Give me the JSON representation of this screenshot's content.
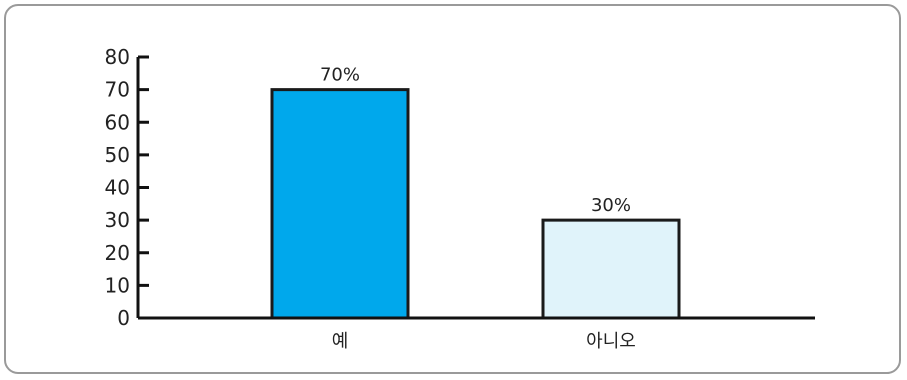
{
  "chart_data": {
    "type": "bar",
    "categories": [
      "예",
      "아니오"
    ],
    "values": [
      70,
      30
    ],
    "data_labels": [
      "70%",
      "30%"
    ],
    "bar_colors": [
      "#00a8ec",
      "#e0f3fa"
    ],
    "bar_stroke": "#1a1a1a",
    "yticks": [
      "0",
      "10",
      "20",
      "30",
      "40",
      "50",
      "60",
      "70",
      "80"
    ],
    "ylim": [
      0,
      80
    ],
    "title": "",
    "xlabel": "",
    "ylabel": "",
    "grid": false,
    "legend": "none"
  }
}
